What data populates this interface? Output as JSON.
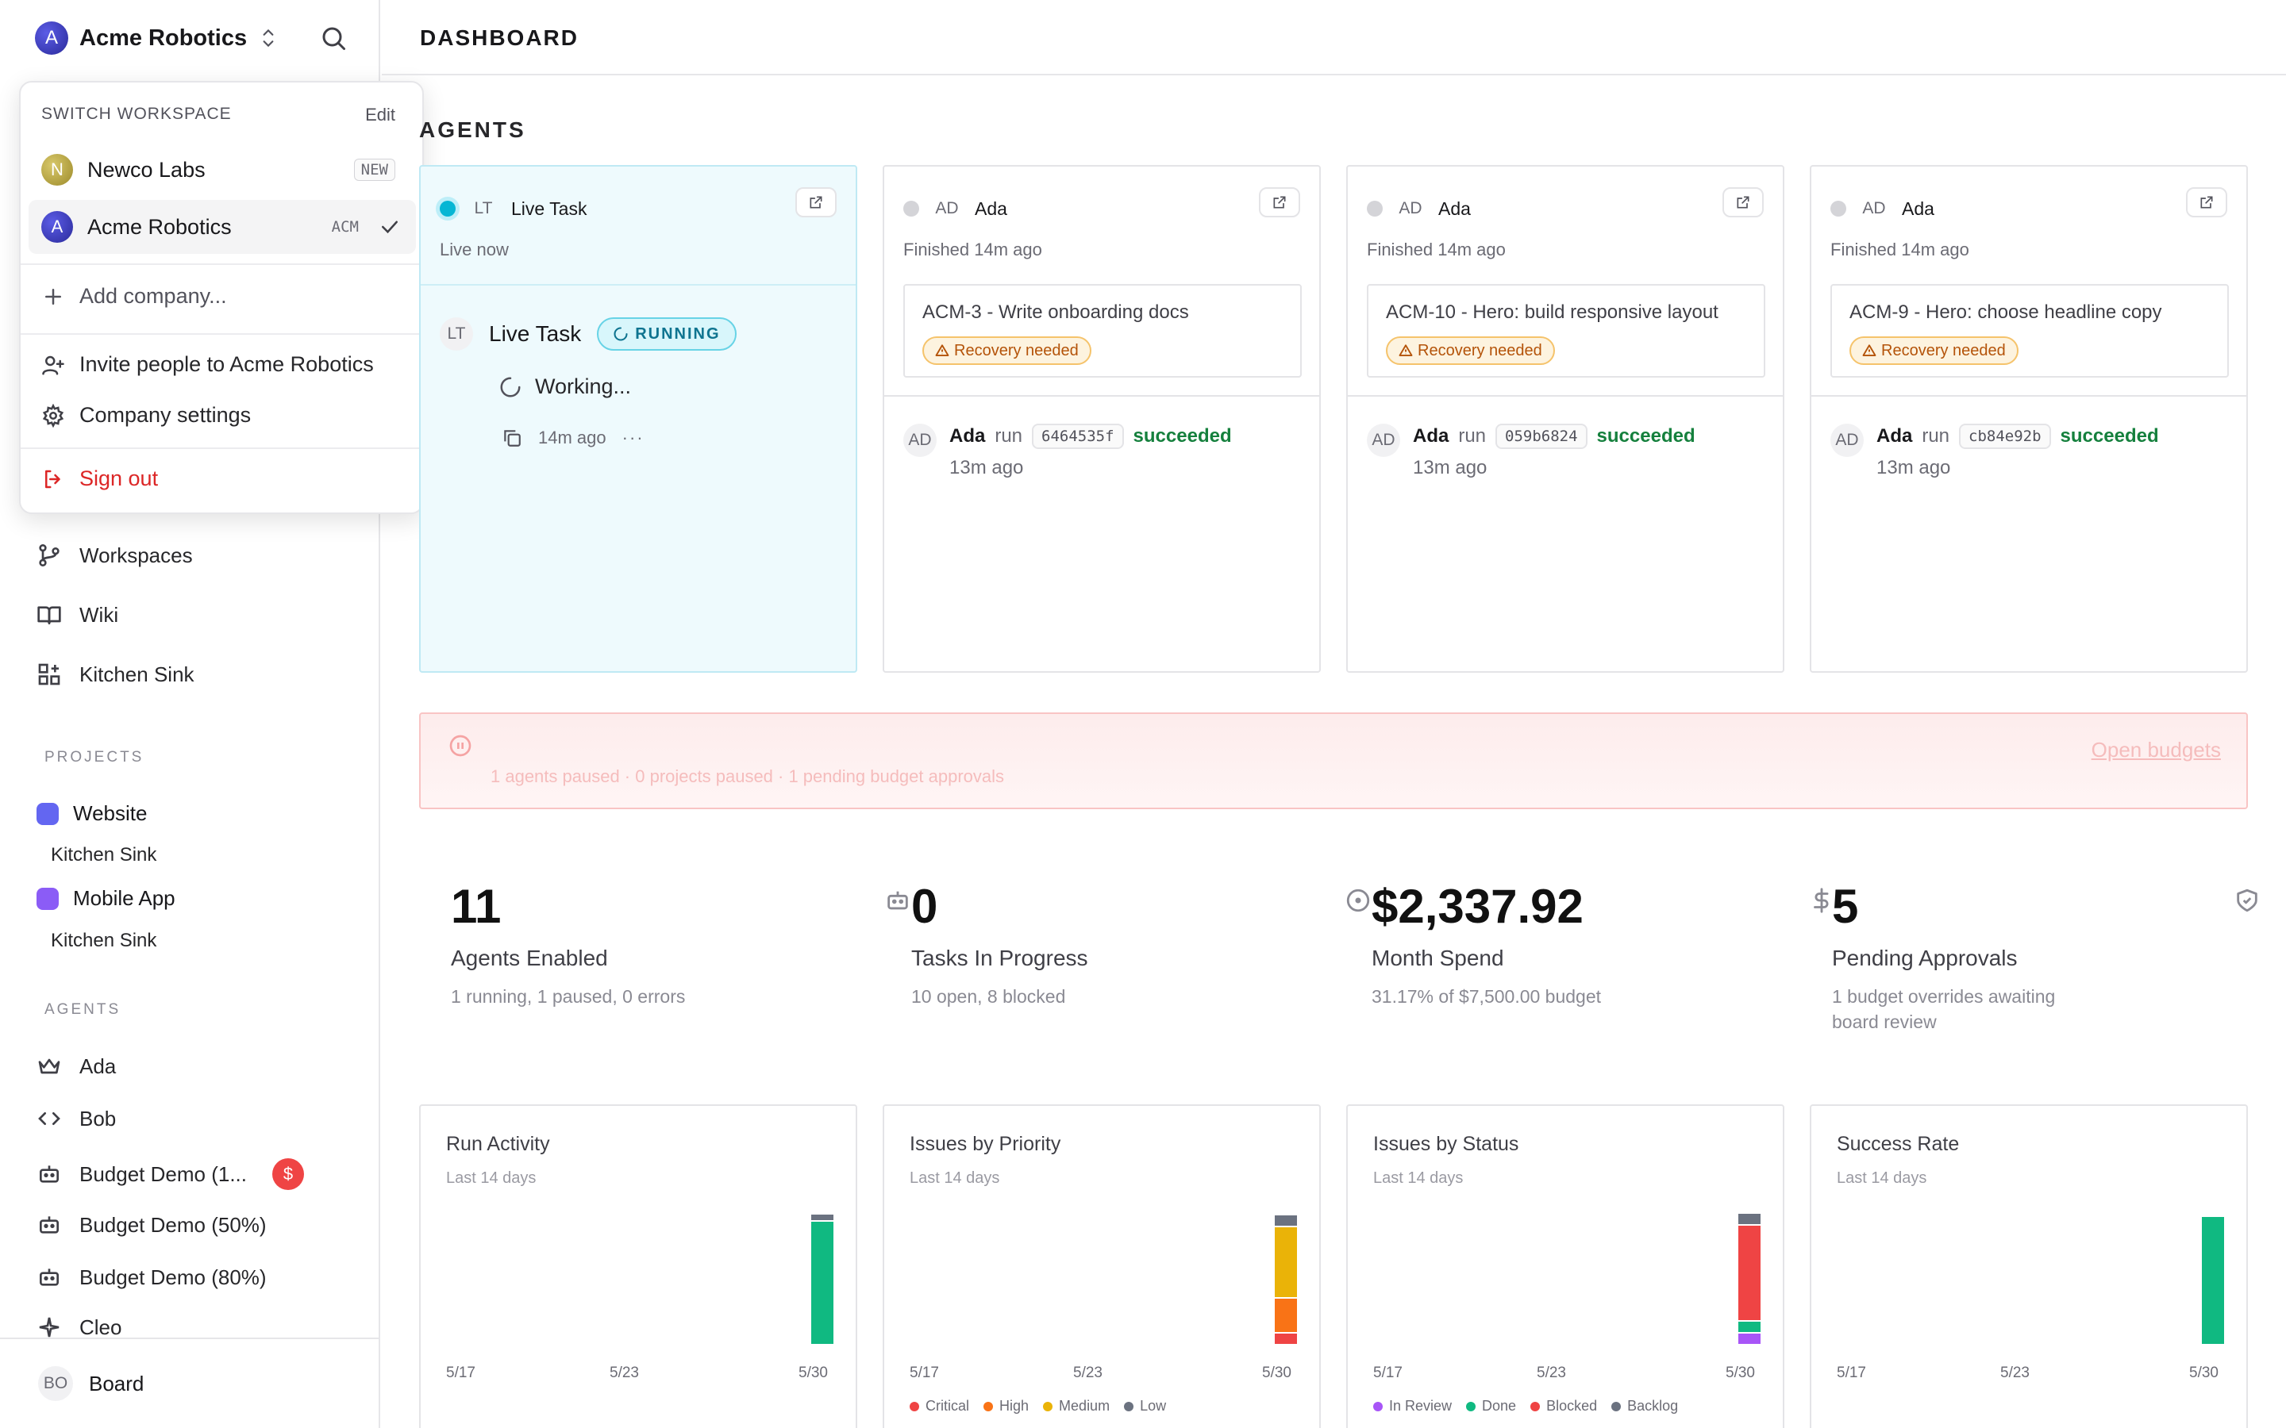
{
  "workspace": {
    "logo": "A",
    "name": "Acme Robotics"
  },
  "dropdown": {
    "label": "SWITCH WORKSPACE",
    "edit": "Edit",
    "companies": [
      {
        "logo": "N",
        "name": "Newco Labs",
        "code": "NEW",
        "color": "#c9b54a"
      },
      {
        "logo": "A",
        "name": "Acme Robotics",
        "code": "ACM",
        "color": "#3b3bb8"
      }
    ],
    "add": "Add company...",
    "invite": "Invite people to Acme Robotics",
    "settings": "Company settings",
    "signout": "Sign out"
  },
  "nav": {
    "workspaces": "Workspaces",
    "wiki": "Wiki",
    "kitchen": "Kitchen Sink"
  },
  "projects": {
    "label": "PROJECTS",
    "items": [
      {
        "name": "Website",
        "color": "#6366f1",
        "sub": "Kitchen Sink"
      },
      {
        "name": "Mobile App",
        "color": "#8b5cf6",
        "sub": "Kitchen Sink"
      }
    ]
  },
  "agents_nav": {
    "label": "AGENTS",
    "items": [
      "Ada",
      "Bob",
      "Budget Demo (1...",
      "Budget Demo (50%)",
      "Budget Demo (80%)",
      "Cleo"
    ],
    "budget_badge": "$"
  },
  "footer": {
    "initials": "BO",
    "name": "Board"
  },
  "page": {
    "title": "DASHBOARD",
    "agents_section": "AGENTS"
  },
  "live_card": {
    "initials": "LT",
    "name": "Live Task",
    "sub": "Live now",
    "task": "Live Task",
    "status": "RUNNING",
    "working": "Working...",
    "time": "14m ago"
  },
  "agent_cards": [
    {
      "initials": "AD",
      "name": "Ada",
      "sub": "Finished 14m ago",
      "issue": "ACM-3 - Write onboarding docs",
      "badge": "Recovery needed",
      "run_agent": "Ada",
      "run_word": "run",
      "hash": "6464535f",
      "result": "succeeded",
      "run_time": "13m ago"
    },
    {
      "initials": "AD",
      "name": "Ada",
      "sub": "Finished 14m ago",
      "issue": "ACM-10 - Hero: build responsive layout",
      "badge": "Recovery needed",
      "run_agent": "Ada",
      "run_word": "run",
      "hash": "059b6824",
      "result": "succeeded",
      "run_time": "13m ago"
    },
    {
      "initials": "AD",
      "name": "Ada",
      "sub": "Finished 14m ago",
      "issue": "ACM-9 - Hero: choose headline copy",
      "badge": "Recovery needed",
      "run_agent": "Ada",
      "run_word": "run",
      "hash": "cb84e92b",
      "result": "succeeded",
      "run_time": "13m ago"
    }
  ],
  "banner": {
    "text": "1 agents paused · 0 projects paused · 1 pending budget approvals",
    "link": "Open budgets"
  },
  "stats": [
    {
      "value": "11",
      "label": "Agents Enabled",
      "sub": "1 running, 1 paused, 0 errors",
      "icon": "bot-icon"
    },
    {
      "value": "0",
      "label": "Tasks In Progress",
      "sub": "10 open, 8 blocked",
      "icon": "circle-dot-icon"
    },
    {
      "value": "$2,337.92",
      "label": "Month Spend",
      "sub": "31.17% of $7,500.00 budget",
      "icon": "dollar-icon"
    },
    {
      "value": "5",
      "label": "Pending Approvals",
      "sub": "1 budget overrides awaiting board review",
      "icon": "shield-icon"
    }
  ],
  "charts": [
    {
      "title": "Run Activity",
      "subtitle": "Last 14 days",
      "ticks": [
        "5/17",
        "5/23",
        "5/30"
      ],
      "chart_data": {
        "type": "bar",
        "stacked": true,
        "days": 14,
        "last_day_segments": [
          {
            "color": "#10b981",
            "value": 0.92
          },
          {
            "color": "#6b7280",
            "value": 0.05
          }
        ]
      },
      "legend": []
    },
    {
      "title": "Issues by Priority",
      "subtitle": "Last 14 days",
      "ticks": [
        "5/17",
        "5/23",
        "5/30"
      ],
      "chart_data": {
        "type": "bar",
        "stacked": true,
        "days": 14,
        "last_day_segments": [
          {
            "color": "#ef4444",
            "value": 0.09
          },
          {
            "color": "#f97316",
            "value": 0.26
          },
          {
            "color": "#eab308",
            "value": 0.53
          },
          {
            "color": "#6b7280",
            "value": 0.09
          }
        ]
      },
      "legend": [
        {
          "name": "Critical",
          "color": "#ef4444"
        },
        {
          "name": "High",
          "color": "#f97316"
        },
        {
          "name": "Medium",
          "color": "#eab308"
        },
        {
          "name": "Low",
          "color": "#6b7280"
        }
      ]
    },
    {
      "title": "Issues by Status",
      "subtitle": "Last 14 days",
      "ticks": [
        "5/17",
        "5/23",
        "5/30"
      ],
      "chart_data": {
        "type": "bar",
        "stacked": true,
        "days": 14,
        "last_day_segments": [
          {
            "color": "#a855f7",
            "value": 0.09
          },
          {
            "color": "#10b981",
            "value": 0.09
          },
          {
            "color": "#ef4444",
            "value": 0.71
          },
          {
            "color": "#6b7280",
            "value": 0.09
          }
        ]
      },
      "legend": [
        {
          "name": "In Review",
          "color": "#a855f7"
        },
        {
          "name": "Done",
          "color": "#10b981"
        },
        {
          "name": "Blocked",
          "color": "#ef4444"
        },
        {
          "name": "Backlog",
          "color": "#6b7280"
        }
      ]
    },
    {
      "title": "Success Rate",
      "subtitle": "Last 14 days",
      "ticks": [
        "5/17",
        "5/23",
        "5/30"
      ],
      "chart_data": {
        "type": "bar",
        "stacked": false,
        "days": 14,
        "last_day_segments": [
          {
            "color": "#10b981",
            "value": 0.95
          }
        ]
      },
      "legend": []
    }
  ]
}
